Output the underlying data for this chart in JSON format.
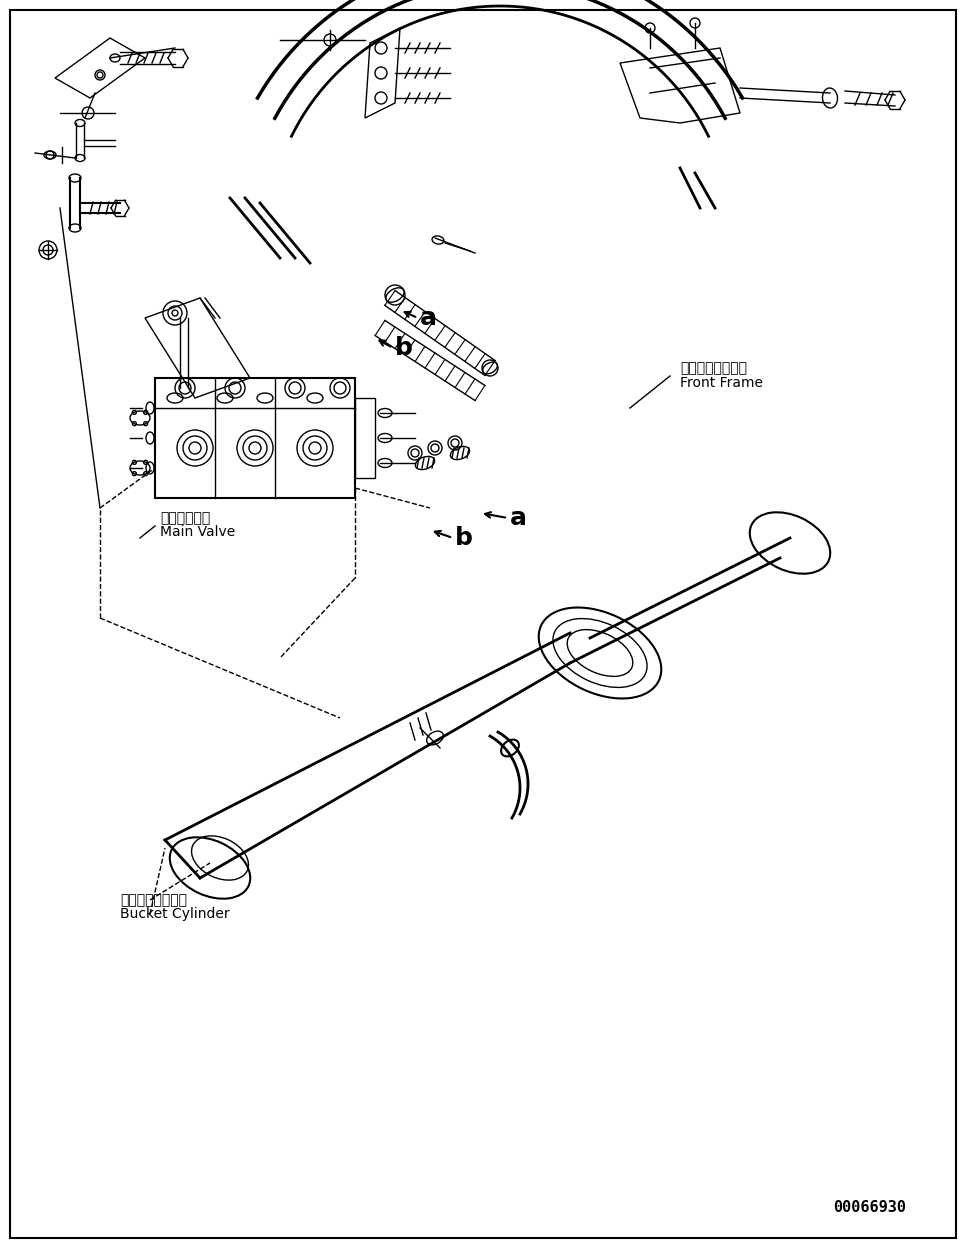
{
  "bg_color": "#ffffff",
  "line_color": "#000000",
  "line_width": 1.0,
  "part_number": "00066930",
  "labels": {
    "front_frame_jp": "フロントフレーム",
    "front_frame_en": "Front Frame",
    "main_valve_jp": "メインバルブ",
    "main_valve_en": "Main Valve",
    "bucket_cylinder_jp": "バケットシリンダ",
    "bucket_cylinder_en": "Bucket Cylinder",
    "label_a": "a",
    "label_b": "b"
  },
  "figsize": [
    9.66,
    12.58
  ],
  "dpi": 100
}
